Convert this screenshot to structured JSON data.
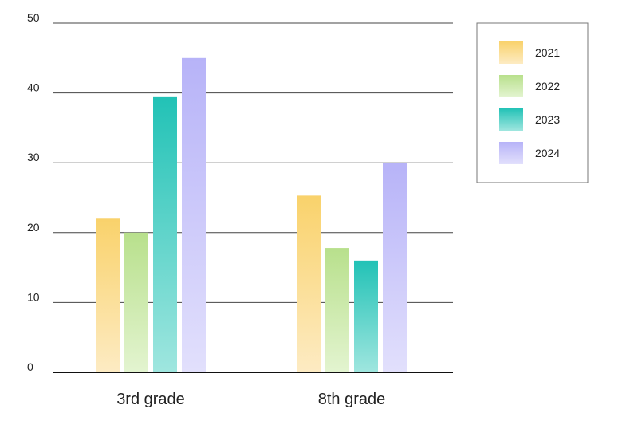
{
  "chart_data": {
    "type": "bar",
    "categories": [
      "3rd grade",
      "8th grade"
    ],
    "series": [
      {
        "name": "2021",
        "values": [
          22,
          25.3
        ],
        "color_top": "#f9d26b",
        "color_bottom": "#fdebc3"
      },
      {
        "name": "2022",
        "values": [
          20,
          17.8
        ],
        "color_top": "#b8e08c",
        "color_bottom": "#e3f4d0"
      },
      {
        "name": "2023",
        "values": [
          39.4,
          16
        ],
        "color_top": "#22c2b6",
        "color_bottom": "#9fe6df"
      },
      {
        "name": "2024",
        "values": [
          45,
          30
        ],
        "color_top": "#b7b3f8",
        "color_bottom": "#e2e0fc"
      }
    ],
    "yticks": [
      0,
      10,
      20,
      30,
      40,
      50
    ],
    "ylim": [
      0,
      50
    ],
    "grid": true,
    "legend_position": "top-right",
    "title": "",
    "xlabel": "",
    "ylabel": ""
  }
}
